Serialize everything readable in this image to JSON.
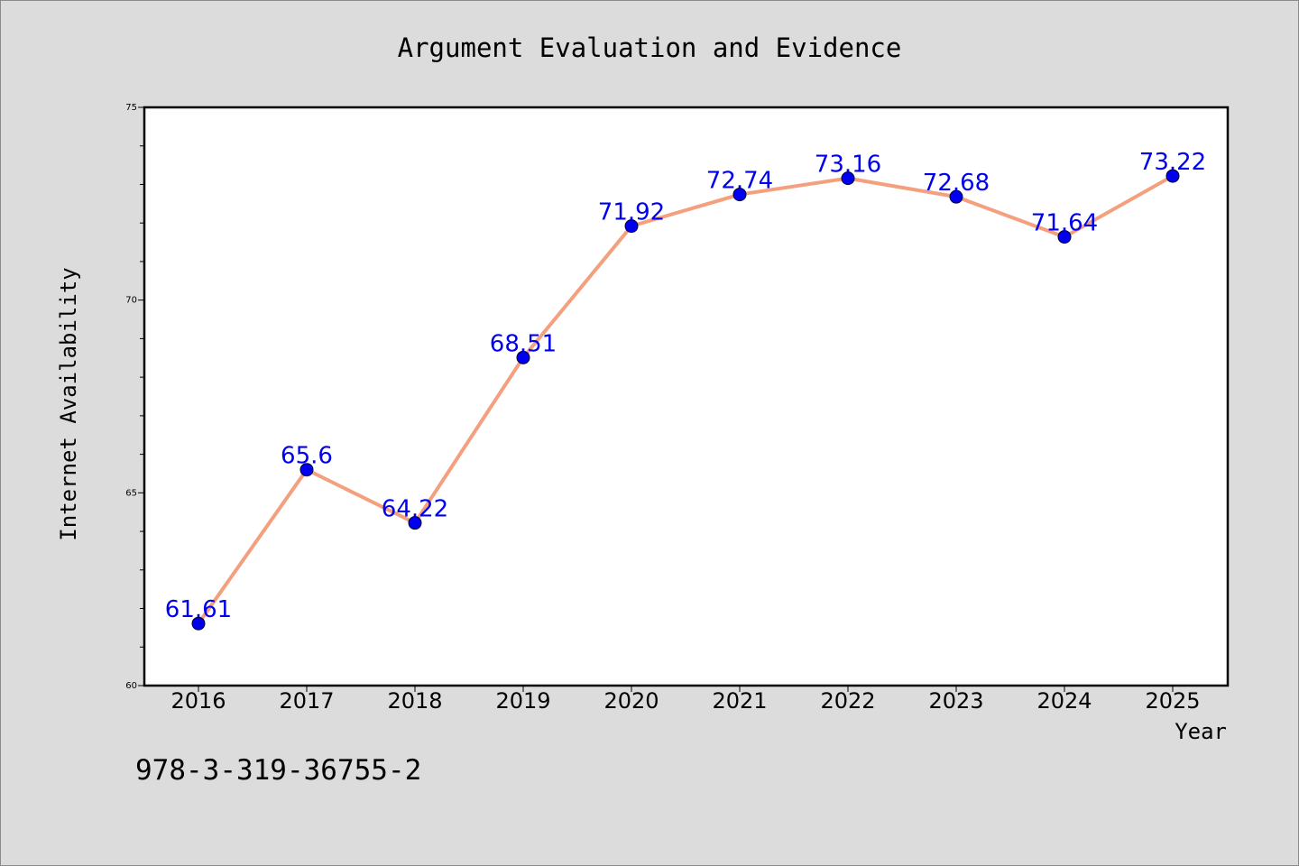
{
  "chart_data": {
    "type": "line",
    "title": "Argument Evaluation and Evidence",
    "xlabel": "Year",
    "ylabel": "Internet Availability",
    "categories": [
      "2016",
      "2017",
      "2018",
      "2019",
      "2020",
      "2021",
      "2022",
      "2023",
      "2024",
      "2025"
    ],
    "series": [
      {
        "values": [
          61.61,
          65.6,
          64.22,
          68.51,
          71.92,
          72.74,
          73.16,
          72.68,
          71.64,
          73.22
        ],
        "data_labels": [
          "61.61",
          "65.6",
          "64.22",
          "68.51",
          "71.92",
          "72.74",
          "73.16",
          "72.68",
          "71.64",
          "73.22"
        ],
        "line_color": "#f4a07e",
        "marker_color": "#0000ee",
        "label_color": "#0000ee"
      }
    ],
    "ylim": [
      60,
      75
    ],
    "yticks": [
      "60",
      "65",
      "70",
      "75"
    ],
    "grid": false,
    "legend": "none"
  },
  "footer": {
    "isbn": "978-3-319-36755-2"
  },
  "colors": {
    "background": "#dcdcdc",
    "plot_background": "#ffffff"
  }
}
